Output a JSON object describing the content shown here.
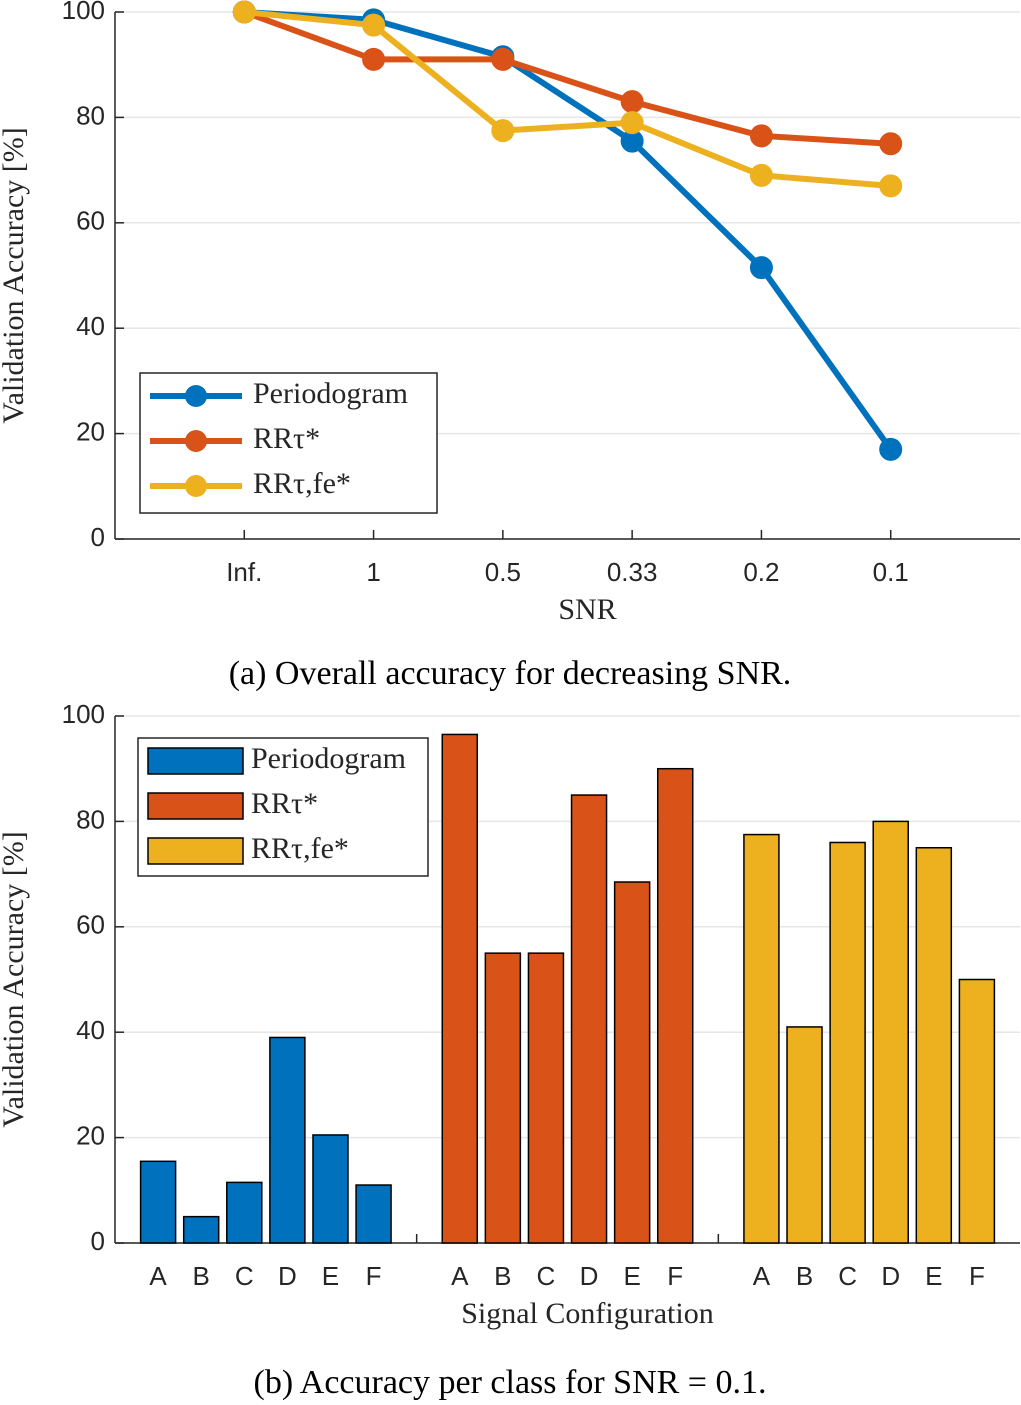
{
  "chart_data": [
    {
      "type": "line",
      "caption": "(a) Overall accuracy for decreasing SNR.",
      "xlabel": "SNR",
      "ylabel": "Validation Accuracy [%]",
      "categories": [
        "Inf.",
        "1",
        "0.5",
        "0.33",
        "0.2",
        "0.1"
      ],
      "series": [
        {
          "name": "Periodogram",
          "color": "#0072BD",
          "values": [
            100,
            98.5,
            91.5,
            75.5,
            51.5,
            17
          ]
        },
        {
          "name": "RRτ*",
          "color": "#D95319",
          "values": [
            100,
            91,
            91,
            83,
            76.5,
            75
          ]
        },
        {
          "name": "RRτ,fe*",
          "color": "#EDB120",
          "values": [
            100,
            97.5,
            77.5,
            79,
            69,
            67
          ]
        }
      ],
      "ylim": [
        0,
        100
      ],
      "yticks": [
        0,
        20,
        40,
        60,
        80,
        100
      ],
      "grid": true,
      "legend": "lower left"
    },
    {
      "type": "bar",
      "caption": "(b) Accuracy per class for SNR = 0.1.",
      "xlabel": "Signal Configuration",
      "ylabel": "Validation Accuracy [%]",
      "categories": [
        "A",
        "B",
        "C",
        "D",
        "E",
        "F"
      ],
      "series": [
        {
          "name": "Periodogram",
          "color": "#0072BD",
          "values": [
            15.5,
            5,
            11.5,
            39,
            20.5,
            11
          ]
        },
        {
          "name": "RRτ*",
          "color": "#D95319",
          "values": [
            96.5,
            55,
            55,
            85,
            68.5,
            90
          ]
        },
        {
          "name": "RRτ,fe*",
          "color": "#EDB120",
          "values": [
            77.5,
            41,
            76,
            80,
            75,
            50
          ]
        }
      ],
      "ylim": [
        0,
        100
      ],
      "yticks": [
        0,
        20,
        40,
        60,
        80,
        100
      ],
      "grid": true,
      "legend": "upper left"
    }
  ]
}
